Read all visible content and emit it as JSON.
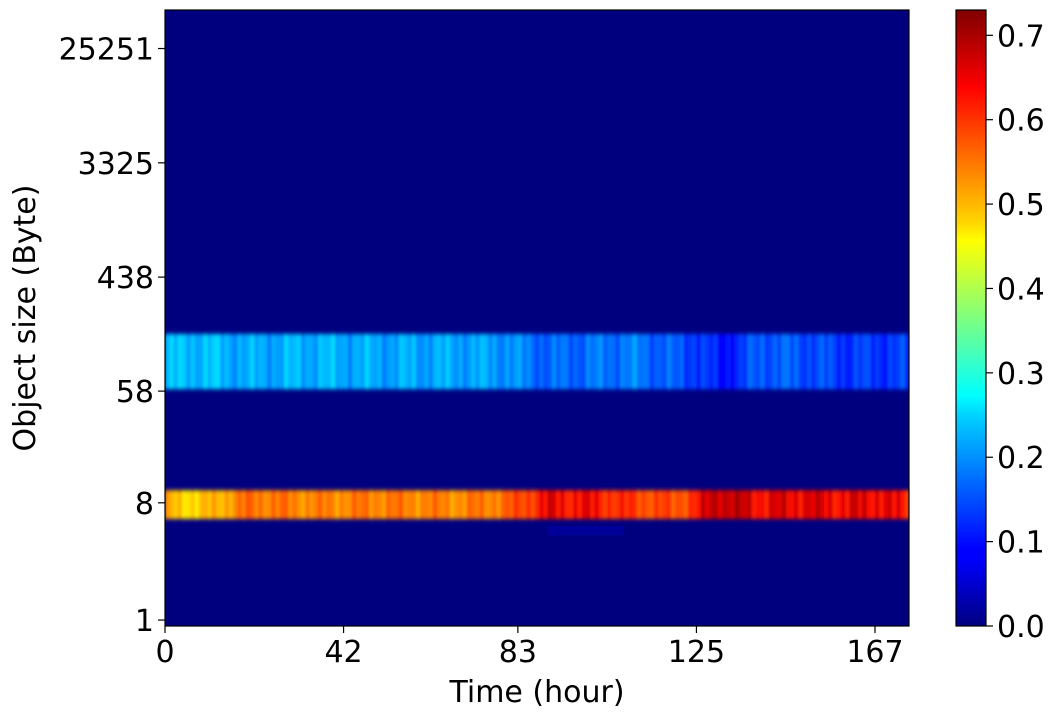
{
  "chart_data": {
    "type": "heatmap",
    "title": "",
    "xlabel": "Time (hour)",
    "ylabel": "Object size (Byte)",
    "xlim": [
      0,
      175
    ],
    "x_ticks": [
      "0",
      "42",
      "83",
      "125",
      "167"
    ],
    "x_tick_values": [
      0,
      42,
      83,
      125,
      167
    ],
    "y_ticks": [
      "1",
      "8",
      "58",
      "438",
      "3325",
      "25251"
    ],
    "y_scale": "log",
    "ylim": [
      0.9,
      50000
    ],
    "colormap": "jet",
    "colorbar": {
      "range": [
        0.0,
        0.73
      ],
      "ticks": [
        "0.0",
        "0.1",
        "0.2",
        "0.3",
        "0.4",
        "0.5",
        "0.6",
        "0.7"
      ],
      "tick_values": [
        0.0,
        0.1,
        0.2,
        0.3,
        0.4,
        0.5,
        0.6,
        0.7
      ]
    },
    "background_value": 0.0,
    "bands": [
      {
        "y_low": 60,
        "y_high": 160,
        "time": [
          0,
          8,
          20,
          35,
          50,
          70,
          80,
          90,
          100,
          110,
          120,
          125,
          130,
          135,
          140,
          150,
          160,
          167,
          175
        ],
        "intensity": [
          0.22,
          0.23,
          0.21,
          0.22,
          0.21,
          0.21,
          0.2,
          0.16,
          0.17,
          0.18,
          0.15,
          0.14,
          0.1,
          0.12,
          0.16,
          0.15,
          0.13,
          0.13,
          0.13
        ]
      },
      {
        "y_low": 6,
        "y_high": 10,
        "time": [
          0,
          8,
          20,
          35,
          50,
          70,
          80,
          90,
          100,
          110,
          120,
          125,
          130,
          135,
          140,
          150,
          160,
          167,
          175
        ],
        "intensity": [
          0.52,
          0.5,
          0.58,
          0.56,
          0.57,
          0.56,
          0.58,
          0.66,
          0.65,
          0.62,
          0.6,
          0.64,
          0.7,
          0.68,
          0.66,
          0.67,
          0.66,
          0.67,
          0.64
        ]
      }
    ],
    "low_blip": {
      "y_low": 4.5,
      "y_high": 5.3,
      "time": [
        90,
        108
      ],
      "intensity": 0.02
    }
  }
}
